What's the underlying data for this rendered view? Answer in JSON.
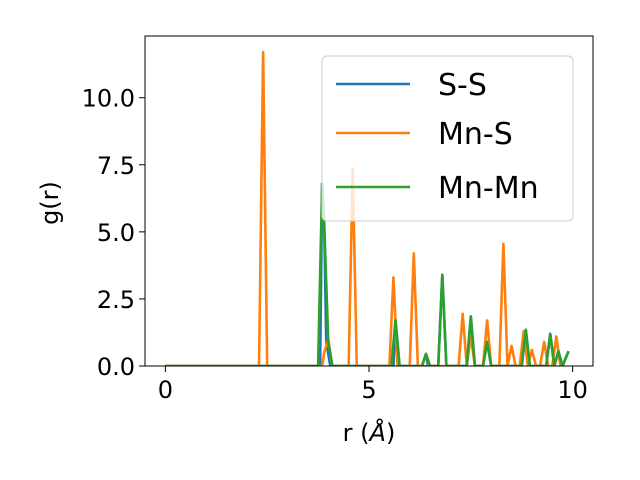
{
  "chart_data": {
    "type": "line",
    "xlabel_prefix": "r (",
    "xlabel_unit": "Å",
    "xlabel_suffix": ")",
    "ylabel": "g(r)",
    "xlim": [
      -0.5,
      10.5
    ],
    "ylim": [
      0,
      12.3
    ],
    "xticks": [
      0,
      5,
      10
    ],
    "xtick_labels": [
      "0",
      "5",
      "10"
    ],
    "yticks": [
      0,
      2.5,
      5,
      7.5,
      10
    ],
    "ytick_labels": [
      "0.0",
      "2.5",
      "5.0",
      "7.5",
      "10.0"
    ],
    "grid": false,
    "legend_placement": "top-right",
    "series": [
      {
        "name": "S-S",
        "color": "#1f77b4",
        "x": [
          0,
          2.5,
          3.8,
          3.85,
          3.9,
          3.95,
          4.05,
          5.6,
          5.65,
          5.7,
          5.75,
          6.3,
          6.4,
          6.45,
          6.7,
          6.8,
          6.9,
          7.4,
          7.5,
          7.6,
          7.8,
          7.9,
          8.0,
          8.75,
          8.85,
          8.95,
          9.35,
          9.45,
          9.55,
          9.65,
          9.75,
          9.9
        ],
        "y": [
          0,
          0,
          0,
          6.8,
          5.3,
          0.9,
          0,
          0,
          1.7,
          0.9,
          0,
          0,
          0.45,
          0,
          0,
          3.4,
          0,
          0,
          1.85,
          0,
          0,
          0.9,
          0,
          0,
          1.35,
          0,
          0,
          1.2,
          0,
          0.55,
          0,
          0.55
        ]
      },
      {
        "name": "Mn-S",
        "color": "#ff7f0e",
        "x": [
          0,
          2.3,
          2.4,
          2.5,
          3.5,
          3.85,
          3.9,
          4.0,
          4.1,
          4.5,
          4.6,
          4.7,
          5.5,
          5.6,
          5.7,
          6.0,
          6.1,
          6.2,
          7.2,
          7.3,
          7.4,
          7.5,
          7.6,
          7.8,
          7.9,
          8.0,
          8.2,
          8.3,
          8.4,
          8.5,
          8.6,
          8.7,
          8.8,
          8.9,
          9.0,
          9.1,
          9.2,
          9.3,
          9.4,
          9.5,
          9.6,
          9.7,
          9.8
        ],
        "y": [
          0,
          0,
          11.7,
          0,
          0,
          0,
          0.5,
          1.0,
          0,
          0,
          7.35,
          0,
          0,
          3.3,
          0,
          0,
          4.2,
          0,
          0,
          1.95,
          0,
          1.1,
          0,
          0,
          1.7,
          0,
          0,
          4.55,
          0,
          0.75,
          0,
          0,
          1.3,
          0,
          0.6,
          0,
          0,
          0.9,
          0,
          0,
          1.1,
          0,
          0
        ]
      },
      {
        "name": "Mn-Mn",
        "color": "#2ca02c",
        "x": [
          0,
          3.75,
          3.85,
          3.9,
          4.0,
          4.1,
          5.55,
          5.65,
          5.75,
          6.3,
          6.4,
          6.5,
          6.7,
          6.8,
          6.9,
          7.4,
          7.5,
          7.6,
          7.8,
          7.9,
          8.0,
          8.75,
          8.85,
          8.95,
          9.35,
          9.45,
          9.55,
          9.65,
          9.75,
          9.9
        ],
        "y": [
          0,
          0,
          6.8,
          5.3,
          0.9,
          0,
          0,
          1.7,
          0,
          0,
          0.45,
          0,
          0,
          3.4,
          0,
          0,
          1.85,
          0,
          0,
          0.9,
          0,
          0,
          1.35,
          0,
          0,
          1.2,
          0,
          0.55,
          0,
          0.55
        ]
      }
    ]
  }
}
